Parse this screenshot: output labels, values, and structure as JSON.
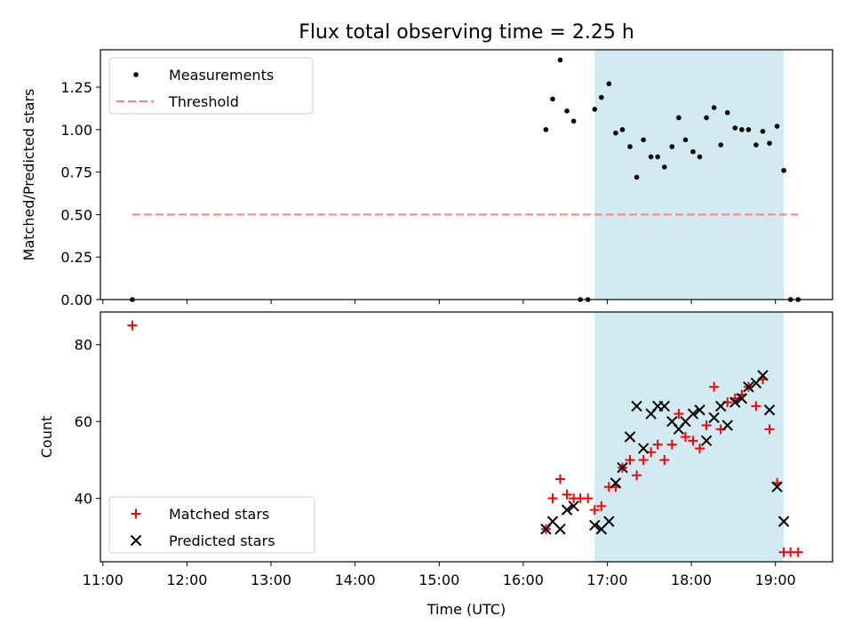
{
  "figure": {
    "title": "Flux total observing time = 2.25 h",
    "highlight_color": "#add8e6"
  },
  "chart_data": [
    {
      "type": "scatter",
      "ylabel": "Matched/Predicted stars",
      "xlim": [
        10.97,
        19.68
      ],
      "ylim": [
        0.0,
        1.47
      ],
      "yticks": [
        0.0,
        0.25,
        0.5,
        0.75,
        1.0,
        1.25
      ],
      "ytick_labels": [
        "0.00",
        "0.25",
        "0.50",
        "0.75",
        "1.00",
        "1.25"
      ],
      "highlight_span": [
        16.85,
        19.1
      ],
      "legend_position": "upper left",
      "series": [
        {
          "name": "Measurements",
          "marker": "dot",
          "color": "#000000",
          "x": [
            11.35,
            16.27,
            16.35,
            16.44,
            16.52,
            16.6,
            16.68,
            16.77,
            16.85,
            16.93,
            17.02,
            17.1,
            17.18,
            17.27,
            17.35,
            17.43,
            17.52,
            17.6,
            17.68,
            17.77,
            17.85,
            17.93,
            18.02,
            18.1,
            18.18,
            18.27,
            18.35,
            18.43,
            18.52,
            18.6,
            18.68,
            18.77,
            18.85,
            18.93,
            19.02,
            19.1,
            19.18,
            19.27
          ],
          "y": [
            0.0,
            1.0,
            1.18,
            1.41,
            1.11,
            1.05,
            0.0,
            0.0,
            1.12,
            1.19,
            1.27,
            0.98,
            1.0,
            0.9,
            0.72,
            0.94,
            0.84,
            0.84,
            0.78,
            0.9,
            1.07,
            0.94,
            0.87,
            0.84,
            1.07,
            1.13,
            0.91,
            1.1,
            1.01,
            1.0,
            1.0,
            0.91,
            0.99,
            0.92,
            1.02,
            0.76,
            0.0,
            0.0
          ]
        },
        {
          "name": "Threshold",
          "style": "dashed",
          "color": "#ff7f7f",
          "x": [
            11.35,
            19.27
          ],
          "y": [
            0.5,
            0.5
          ]
        }
      ]
    },
    {
      "type": "scatter",
      "xlabel": "Time (UTC)",
      "ylabel": "Count",
      "xlim": [
        10.97,
        19.68
      ],
      "ylim": [
        23.5,
        88.5
      ],
      "xticks": [
        11,
        12,
        13,
        14,
        15,
        16,
        17,
        18,
        19
      ],
      "xtick_labels": [
        "11:00",
        "12:00",
        "13:00",
        "14:00",
        "15:00",
        "16:00",
        "17:00",
        "18:00",
        "19:00"
      ],
      "yticks": [
        40,
        60,
        80
      ],
      "ytick_labels": [
        "40",
        "60",
        "80"
      ],
      "highlight_span": [
        16.85,
        19.1
      ],
      "legend_position": "lower left",
      "series": [
        {
          "name": "Matched stars",
          "marker": "plus",
          "color": "#ff0000",
          "x": [
            11.35,
            16.27,
            16.35,
            16.44,
            16.52,
            16.6,
            16.68,
            16.77,
            16.85,
            16.93,
            17.02,
            17.1,
            17.18,
            17.27,
            17.35,
            17.43,
            17.52,
            17.6,
            17.68,
            17.77,
            17.85,
            17.93,
            18.02,
            18.1,
            18.18,
            18.27,
            18.35,
            18.43,
            18.52,
            18.6,
            18.68,
            18.77,
            18.85,
            18.93,
            19.02,
            19.1,
            19.18,
            19.27
          ],
          "y": [
            85,
            32,
            40,
            45,
            41,
            40,
            40,
            40,
            37,
            38,
            43,
            43,
            48,
            50,
            46,
            50,
            52,
            54,
            50,
            54,
            62,
            56,
            55,
            53,
            59,
            69,
            58,
            65,
            66,
            67,
            69,
            64,
            71,
            58,
            44,
            26,
            26,
            26
          ]
        },
        {
          "name": "Predicted stars",
          "marker": "x",
          "color": "#000000",
          "x": [
            16.27,
            16.35,
            16.44,
            16.52,
            16.6,
            16.85,
            16.93,
            17.02,
            17.1,
            17.18,
            17.27,
            17.35,
            17.43,
            17.52,
            17.6,
            17.68,
            17.77,
            17.85,
            17.93,
            18.02,
            18.1,
            18.18,
            18.27,
            18.35,
            18.43,
            18.52,
            18.6,
            18.68,
            18.77,
            18.85,
            18.93,
            19.02,
            19.1
          ],
          "y": [
            32,
            34,
            32,
            37,
            38,
            33,
            32,
            34,
            44,
            48,
            56,
            64,
            53,
            62,
            64,
            64,
            60,
            58,
            60,
            62,
            63,
            55,
            61,
            64,
            59,
            65,
            66,
            69,
            70,
            72,
            63,
            43,
            34
          ]
        }
      ]
    }
  ]
}
